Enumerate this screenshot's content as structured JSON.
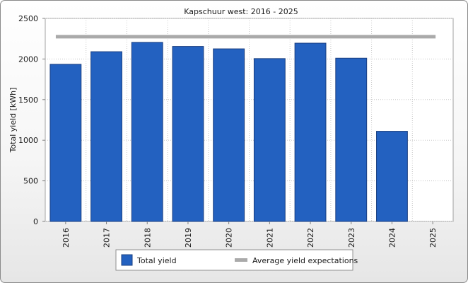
{
  "chart_data": {
    "type": "bar",
    "title": "Kapschuur west: 2016 - 2025",
    "ylabel": "Total yield [kWh]",
    "xlabel": "",
    "ylim": [
      0,
      2500
    ],
    "yticks": [
      0,
      500,
      1000,
      1500,
      2000,
      2500
    ],
    "categories": [
      "2016",
      "2017",
      "2018",
      "2019",
      "2020",
      "2021",
      "2022",
      "2023",
      "2024",
      "2025"
    ],
    "series": [
      {
        "name": "Total yield",
        "type": "bar",
        "color": "#2361c0",
        "values": [
          1935,
          2090,
          2205,
          2155,
          2125,
          2005,
          2195,
          2010,
          1110,
          null
        ]
      },
      {
        "name": "Average yield expectations",
        "type": "line",
        "color": "#aaaaaa",
        "values": [
          2275,
          2275,
          2275,
          2275,
          2275,
          2275,
          2275,
          2275,
          2275,
          2275
        ]
      }
    ],
    "grid": true,
    "legend": "bottom"
  }
}
